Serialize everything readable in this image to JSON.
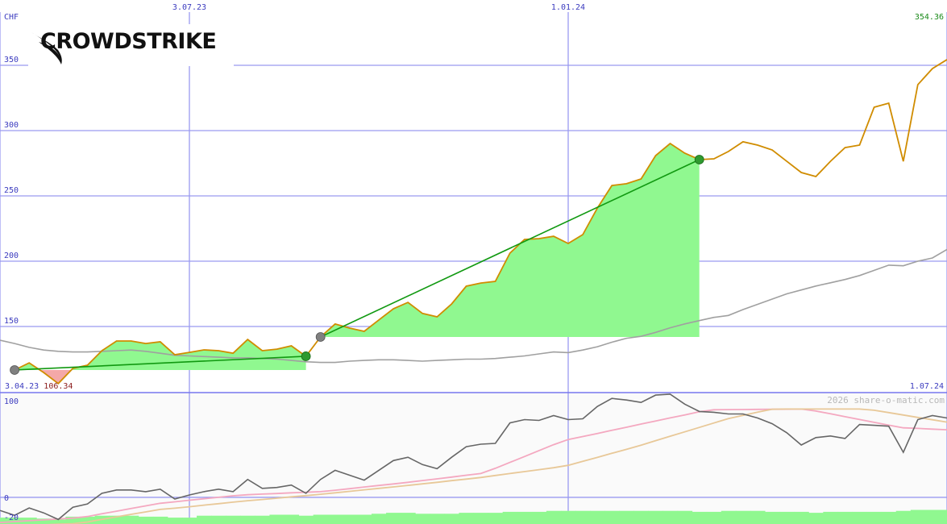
{
  "logo": "CROWDSTRIKE",
  "chart_data": [
    {
      "type": "line",
      "unit_label": "CHF",
      "xlim": [
        0,
        65
      ],
      "xticks": [
        {
          "value": 0,
          "label": "3.04.23"
        },
        {
          "value": 13,
          "label": "3.07.23"
        },
        {
          "value": 39,
          "label": "1.01.24"
        },
        {
          "value": 65,
          "label": "1.07.24"
        }
      ],
      "ylim": [
        99.4,
        400
      ],
      "yticks": [
        150,
        200,
        250,
        300,
        350
      ],
      "grid": true,
      "series": [
        {
          "color": "#d08c00",
          "values": [
            null,
            116.7,
            122.2,
            114.8,
            106.34,
            117.9,
            120.4,
            131.5,
            138.9,
            138.9,
            137,
            138.3,
            128.4,
            130.2,
            132.1,
            131.5,
            129.6,
            140.1,
            131.5,
            132.7,
            135.2,
            127.2,
            142,
            151.9,
            148.8,
            146.3,
            155,
            163.6,
            168.5,
            160,
            157.4,
            167.3,
            180.9,
            183.3,
            184.6,
            206.2,
            216.7,
            217.3,
            219.1,
            213.6,
            220.4,
            240.7,
            258,
            259.3,
            263,
            280.9,
            290.1,
            282.7,
            277.8,
            278.4,
            284,
            291.4,
            288.9,
            285.2,
            276.5,
            267.9,
            264.8,
            276.5,
            287,
            288.9,
            317.9,
            321,
            276.5,
            335.2,
            347.5,
            354.36
          ]
        },
        {
          "color": "#a0a0a0",
          "values": [
            139.5,
            137,
            134,
            132,
            131,
            130.5,
            130.5,
            131,
            131.5,
            132,
            131,
            129.5,
            128,
            127.5,
            127,
            126.5,
            126,
            126,
            125.5,
            125,
            124,
            123,
            122.5,
            122.5,
            123.5,
            124,
            124.5,
            124.5,
            124,
            123.5,
            124,
            124.5,
            125,
            125,
            125.5,
            126.5,
            127.5,
            129,
            130.5,
            130,
            132,
            134.5,
            138,
            141,
            142.5,
            145.5,
            149,
            152,
            154.5,
            157,
            158.5,
            163,
            167,
            171,
            175,
            178,
            181,
            183.5,
            186,
            189,
            193,
            197,
            196.5,
            200,
            202.5,
            209
          ]
        }
      ]
    },
    {
      "type": "line",
      "watermark": "2026 share-o-matic.com",
      "xlim": [
        0,
        65
      ],
      "ylim": [
        -27.6,
        108.5
      ],
      "yticks": [
        -20,
        0,
        100
      ],
      "series": [
        {
          "style": "bar",
          "color": "#90f890",
          "values": [
            -21,
            -21,
            -21,
            -22,
            -23,
            -20,
            -20,
            -19,
            -19,
            -19,
            -20,
            -20,
            -21,
            -21,
            -19,
            -19,
            -19,
            -19,
            -19,
            -18,
            -18,
            -19,
            -18,
            -18,
            -18,
            -18,
            -17,
            -16,
            -16,
            -17,
            -17,
            -17,
            -16,
            -16,
            -16,
            -15,
            -15,
            -15,
            -14,
            -14,
            -14,
            -14,
            -14,
            -14,
            -14,
            -14,
            -14,
            -14,
            -15,
            -15,
            -14,
            -14,
            -14,
            -15,
            -15,
            -15,
            -16,
            -15,
            -15,
            -15,
            -15,
            -15,
            -14,
            -13,
            -13,
            -13
          ]
        },
        {
          "color": "#f4a8c0",
          "values": [
            -26,
            -25.1,
            -24.2,
            -23.3,
            -22.4,
            -21.5,
            -19.8,
            -17,
            -14.3,
            -11.6,
            -8.8,
            -6.1,
            -4.6,
            -3,
            -1.5,
            0,
            1.6,
            2.7,
            3.4,
            4,
            4.7,
            5.3,
            5.9,
            7.4,
            9,
            10.7,
            12.3,
            13.9,
            15.6,
            17.4,
            19.2,
            21,
            22.9,
            24.7,
            30.1,
            36.2,
            42.3,
            48.5,
            54.6,
            59.9,
            63,
            66.2,
            69.4,
            72.6,
            75.9,
            79.1,
            82.3,
            85.4,
            88.6,
            90.7,
            90.9,
            91,
            91.1,
            91.2,
            91.3,
            91.5,
            89.4,
            86.5,
            83.5,
            80.6,
            77.7,
            74.8,
            72,
            71.4,
            70.7,
            70
          ]
        },
        {
          "color": "#e8c898",
          "values": [
            -30,
            -29.5,
            -28.9,
            -28.4,
            -27.8,
            -27.3,
            -25.5,
            -22.8,
            -20.2,
            -17.6,
            -15.1,
            -12.5,
            -11.2,
            -9.7,
            -8.1,
            -6.6,
            -5,
            -3.5,
            -2.2,
            -0.9,
            0.5,
            1.8,
            3.2,
            4.7,
            6.2,
            7.8,
            9.3,
            10.8,
            12.4,
            14,
            15.6,
            17.3,
            18.9,
            20.6,
            22.7,
            24.7,
            26.7,
            28.7,
            30.7,
            33.2,
            37.3,
            41.4,
            45.6,
            49.7,
            54.1,
            58.7,
            63.3,
            67.8,
            72.4,
            77,
            81.5,
            84.9,
            88.2,
            91.3,
            91.5,
            91.5,
            91.5,
            91.5,
            91.5,
            91.5,
            90.2,
            87.8,
            85.3,
            82.8,
            80.4,
            77.9
          ]
        },
        {
          "color": "#666666",
          "values": [
            -13.6,
            -18.6,
            -11,
            -16.1,
            -22.9,
            -10.2,
            -6.8,
            4.2,
            7.6,
            7.6,
            5.9,
            8.5,
            -1.7,
            2.5,
            5.9,
            8.5,
            5.9,
            18.6,
            9.3,
            10.2,
            12.7,
            4.2,
            18.6,
            28,
            22.9,
            17.8,
            28,
            38.1,
            41.5,
            33.9,
            29.7,
            41.5,
            52.5,
            55.1,
            55.9,
            77.1,
            80.5,
            79.7,
            84.7,
            80.5,
            81.4,
            94.1,
            102.5,
            100.8,
            98.3,
            105.9,
            106.8,
            96.6,
            89,
            88.1,
            86.4,
            86.4,
            82.2,
            76.3,
            66.9,
            54.2,
            61.9,
            63.6,
            61,
            75.4,
            74.6,
            73.7,
            46.6,
            80.5,
            84.7,
            82.2
          ]
        }
      ]
    }
  ]
}
